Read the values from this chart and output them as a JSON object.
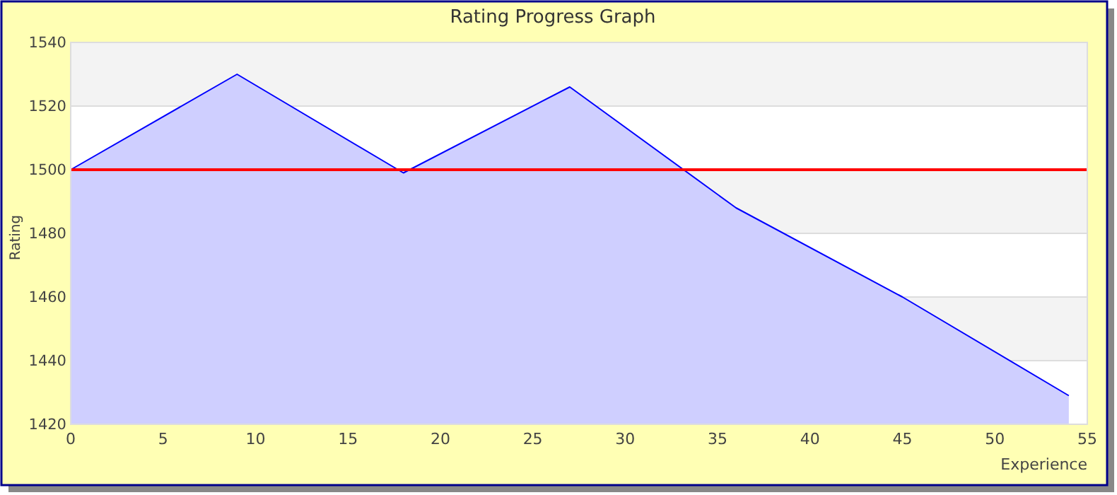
{
  "chart_data": {
    "type": "area",
    "title": "Rating Progress Graph",
    "xlabel": "Experience",
    "ylabel": "Rating",
    "x": [
      0,
      9,
      18,
      27,
      36,
      45,
      54
    ],
    "series": [
      {
        "color": "#0000ff",
        "values": [
          1500,
          1530,
          1499,
          1526,
          1488,
          1460,
          1429
        ]
      }
    ],
    "xlim": [
      0,
      55
    ],
    "xticks": [
      0,
      5,
      10,
      15,
      20,
      25,
      30,
      35,
      40,
      45,
      50,
      55
    ],
    "ylim": [
      1420,
      1540
    ],
    "yticks": [
      1420,
      1440,
      1460,
      1480,
      1500,
      1520,
      1540
    ],
    "grid": "y",
    "ref_lines": [
      {
        "axis": "y",
        "value": 1500,
        "color": "#ff0000"
      }
    ]
  }
}
